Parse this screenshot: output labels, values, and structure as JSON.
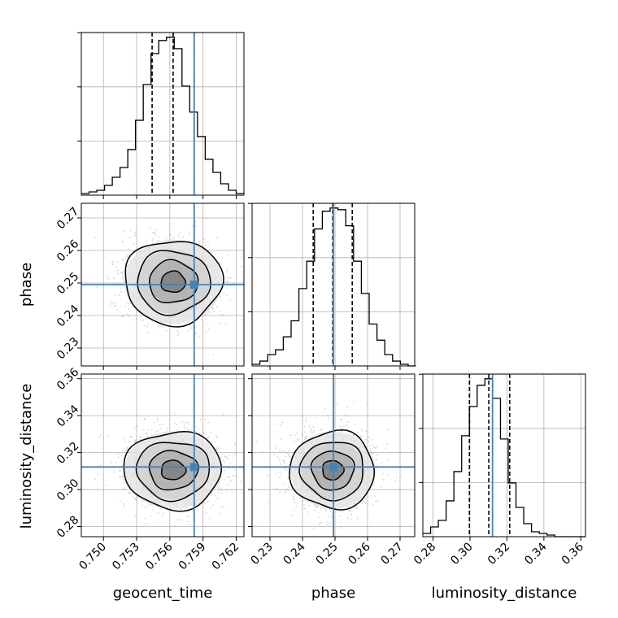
{
  "chart_data": {
    "type": "corner",
    "parameters": [
      "geocent_time",
      "phase",
      "luminosity_distance"
    ],
    "truths": {
      "geocent_time": 0.7582,
      "phase": 0.2495,
      "luminosity_distance": 0.3122
    },
    "colors": {
      "truth": "#4682b4",
      "hist": "#000000",
      "grid": "#b0b0b0",
      "quantile": "#000000"
    },
    "grid": true,
    "axes": {
      "geocent_time": {
        "label": "geocent_time",
        "range": [
          0.748,
          0.7627
        ],
        "ticks": [
          0.75,
          0.753,
          0.756,
          0.759,
          0.762
        ],
        "tick_labels": [
          "0.750",
          "0.753",
          "0.756",
          "0.759",
          "0.762"
        ]
      },
      "phase": {
        "label": "phase",
        "range": [
          0.2245,
          0.2745
        ],
        "ticks": [
          0.23,
          0.24,
          0.25,
          0.26,
          0.27
        ],
        "tick_labels": [
          "0.23",
          "0.24",
          "0.25",
          "0.26",
          "0.27"
        ]
      },
      "luminosity_distance": {
        "label": "luminosity_distance",
        "range": [
          0.2745,
          0.3625
        ],
        "ticks": [
          0.28,
          0.3,
          0.32,
          0.34,
          0.36
        ],
        "tick_labels": [
          "0.28",
          "0.30",
          "0.32",
          "0.34",
          "0.36"
        ]
      }
    },
    "marginals": [
      {
        "param": "geocent_time",
        "bins": [
          0.748,
          0.7487,
          0.7494,
          0.7501,
          0.7508,
          0.7515,
          0.7522,
          0.7529,
          0.7536,
          0.7543,
          0.755,
          0.7557,
          0.7564,
          0.7571,
          0.7578,
          0.7585,
          0.7592,
          0.7599,
          0.7606,
          0.7613,
          0.762,
          0.7627
        ],
        "counts": [
          1,
          2,
          3,
          6,
          11,
          17,
          28,
          46,
          68,
          87,
          95,
          97,
          90,
          67,
          51,
          36,
          22,
          14,
          7,
          3,
          1
        ],
        "quantiles": [
          0.7544,
          0.7563,
          0.7582
        ]
      },
      {
        "param": "phase",
        "bins": [
          0.2245,
          0.2269,
          0.2293,
          0.2317,
          0.2341,
          0.2365,
          0.2389,
          0.2413,
          0.2437,
          0.2461,
          0.2485,
          0.2509,
          0.2533,
          0.2557,
          0.2581,
          0.2605,
          0.2629,
          0.2653,
          0.2677,
          0.2701,
          0.2725,
          0.2749
        ],
        "counts": [
          1,
          3,
          7,
          10,
          18,
          28,
          48,
          65,
          85,
          96,
          98,
          97,
          87,
          65,
          45,
          26,
          16,
          7,
          3,
          1,
          0
        ],
        "quantiles": [
          0.2433,
          0.2493,
          0.2553
        ]
      },
      {
        "param": "luminosity_distance",
        "bins": [
          0.2745,
          0.2787,
          0.2829,
          0.2871,
          0.2913,
          0.2955,
          0.2997,
          0.3039,
          0.3081,
          0.3123,
          0.3165,
          0.3207,
          0.3249,
          0.3291,
          0.3333,
          0.3375,
          0.3417,
          0.3459,
          0.3501,
          0.3543,
          0.3585,
          0.3627
        ],
        "counts": [
          2,
          6,
          10,
          22,
          40,
          62,
          80,
          93,
          97,
          85,
          60,
          33,
          18,
          8,
          3,
          2,
          1,
          0,
          0,
          0,
          0
        ],
        "quantiles": [
          0.2997,
          0.3102,
          0.3215
        ]
      }
    ],
    "joint": [
      {
        "x": "geocent_time",
        "y": "phase",
        "mean": [
          0.7563,
          0.2503
        ],
        "sd": [
          0.0022,
          0.0065
        ]
      },
      {
        "x": "geocent_time",
        "y": "luminosity_distance",
        "mean": [
          0.7563,
          0.3105
        ],
        "sd": [
          0.0022,
          0.0105
        ]
      },
      {
        "x": "phase",
        "y": "luminosity_distance",
        "mean": [
          0.2493,
          0.3105
        ],
        "sd": [
          0.0065,
          0.0105
        ]
      }
    ],
    "contour_levels_sigma": [
      0.5,
      1.0,
      1.5,
      2.0
    ]
  }
}
